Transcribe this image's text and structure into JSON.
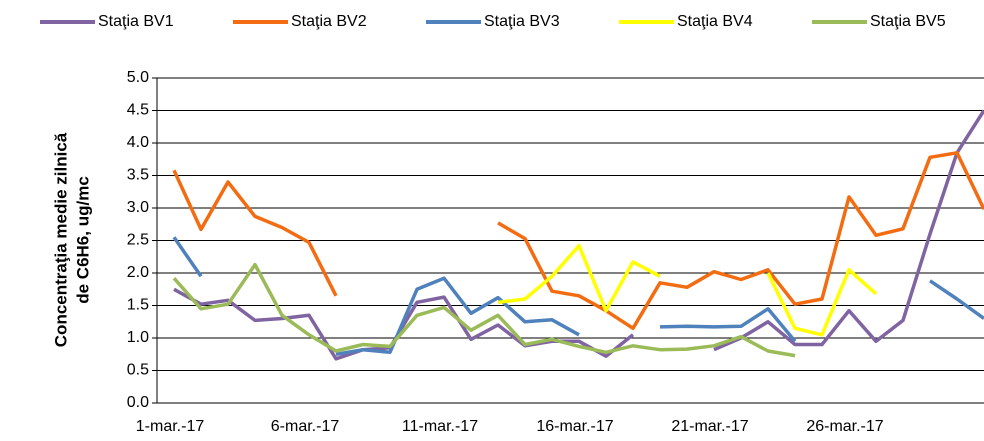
{
  "chart_data": {
    "type": "line",
    "y_label": [
      "Concentraţia medie zilnică",
      "de C6H6, ug/mc"
    ],
    "categories": [
      "1-mar.-17",
      null,
      null,
      null,
      null,
      "6-mar.-17",
      null,
      null,
      null,
      null,
      "11-mar.-17",
      null,
      null,
      null,
      null,
      "16-mar.-17",
      null,
      null,
      null,
      null,
      "21-mar.-17",
      null,
      null,
      null,
      null,
      "26-mar.-17",
      null,
      null,
      null,
      null,
      null
    ],
    "series": [
      {
        "name": "Staţia BV1",
        "color": "#8064a2",
        "values": [
          1.75,
          1.52,
          1.58,
          1.27,
          1.3,
          1.35,
          0.68,
          0.82,
          0.85,
          1.55,
          1.63,
          0.98,
          1.2,
          0.88,
          0.95,
          0.95,
          0.72,
          1.05,
          null,
          null,
          0.82,
          1.0,
          1.25,
          0.9,
          0.9,
          1.42,
          0.95,
          1.27,
          2.6,
          3.85,
          4.5
        ]
      },
      {
        "name": "Staţia BV2",
        "color": "#f36c12",
        "values": [
          3.58,
          2.67,
          3.4,
          2.87,
          2.7,
          2.47,
          1.65,
          null,
          null,
          null,
          null,
          null,
          2.77,
          2.53,
          1.72,
          1.65,
          1.42,
          1.15,
          1.85,
          1.78,
          2.02,
          1.9,
          2.05,
          1.52,
          1.6,
          3.17,
          2.58,
          2.68,
          3.78,
          3.85,
          2.98
        ]
      },
      {
        "name": "Staţia BV3",
        "color": "#4f81bd",
        "values": [
          2.55,
          1.95,
          null,
          null,
          null,
          null,
          0.75,
          0.82,
          0.78,
          1.75,
          1.92,
          1.38,
          1.62,
          1.25,
          1.28,
          1.05,
          null,
          null,
          1.17,
          1.18,
          1.17,
          1.18,
          1.45,
          0.95,
          null,
          null,
          null,
          null,
          1.88,
          1.6,
          1.3
        ]
      },
      {
        "name": "Staţia BV4",
        "color": "#ffff00",
        "values": [
          null,
          null,
          null,
          null,
          null,
          null,
          null,
          null,
          null,
          null,
          null,
          null,
          1.55,
          1.6,
          1.95,
          2.42,
          1.42,
          2.17,
          1.95,
          null,
          null,
          null,
          2.0,
          1.15,
          1.05,
          2.05,
          1.68,
          null,
          null,
          null,
          null
        ]
      },
      {
        "name": "Staţia BV5",
        "color": "#9bbb59",
        "values": [
          1.92,
          1.45,
          1.52,
          2.13,
          1.35,
          1.05,
          0.8,
          0.9,
          0.87,
          1.35,
          1.47,
          1.12,
          1.35,
          0.9,
          0.98,
          0.87,
          0.78,
          0.88,
          0.82,
          0.83,
          0.88,
          1.02,
          0.8,
          0.73,
          null,
          null,
          null,
          null,
          null,
          null,
          null
        ]
      }
    ],
    "ylim": [
      0,
      5
    ],
    "yticks": [
      {
        "value": 0,
        "label": "0.0"
      },
      0.5,
      {
        "value": 1,
        "label": "1.0"
      },
      1.5,
      {
        "value": 2,
        "label": "2.0"
      },
      2.5,
      {
        "value": 3,
        "label": "3.0"
      },
      3.5,
      {
        "value": 4,
        "label": "4.0"
      },
      4.5,
      {
        "value": 5,
        "label": "5.0"
      }
    ],
    "grid": true,
    "legend": "top"
  }
}
